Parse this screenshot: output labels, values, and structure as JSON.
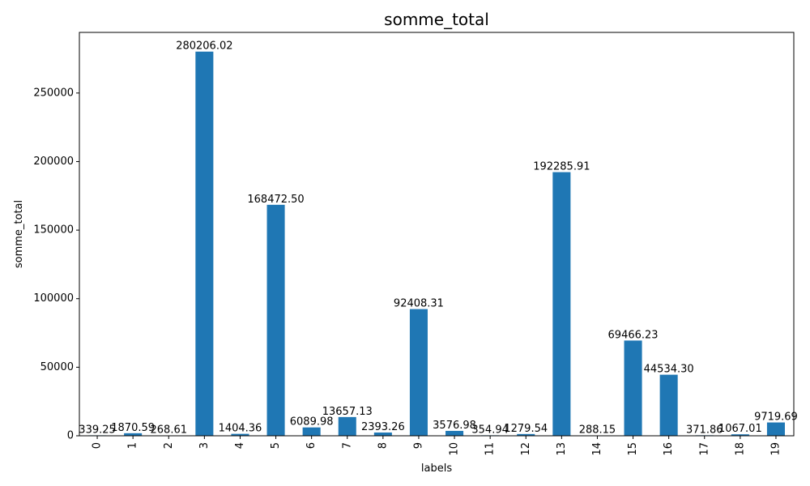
{
  "chart_data": {
    "type": "bar",
    "title": "somme_total",
    "xlabel": "labels",
    "ylabel": "somme_total",
    "categories": [
      "0",
      "1",
      "2",
      "3",
      "4",
      "5",
      "6",
      "7",
      "8",
      "9",
      "10",
      "11",
      "12",
      "13",
      "14",
      "15",
      "16",
      "17",
      "18",
      "19"
    ],
    "values": [
      339.25,
      1870.59,
      268.61,
      280206.02,
      1404.36,
      168472.5,
      6089.98,
      13657.13,
      2393.26,
      92408.31,
      3576.98,
      354.94,
      1279.54,
      192285.91,
      288.15,
      69466.23,
      44534.3,
      371.86,
      1067.01,
      9719.69
    ],
    "data_labels": [
      "339.25",
      "1870.59",
      "268.61",
      "280206.02",
      "1404.36",
      "168472.50",
      "6089.98",
      "13657.13",
      "2393.26",
      "92408.31",
      "3576.98",
      "354.94",
      "1279.54",
      "192285.91",
      "288.15",
      "69466.23",
      "44534.30",
      "371.86",
      "1067.01",
      "9719.69"
    ],
    "ylim": [
      0,
      294216.32
    ],
    "yticks": [
      0,
      50000,
      100000,
      150000,
      200000,
      250000
    ],
    "ytick_labels": [
      "0",
      "50000",
      "100000",
      "150000",
      "200000",
      "250000"
    ],
    "grid": false,
    "bar_color": "#1f77b4"
  }
}
